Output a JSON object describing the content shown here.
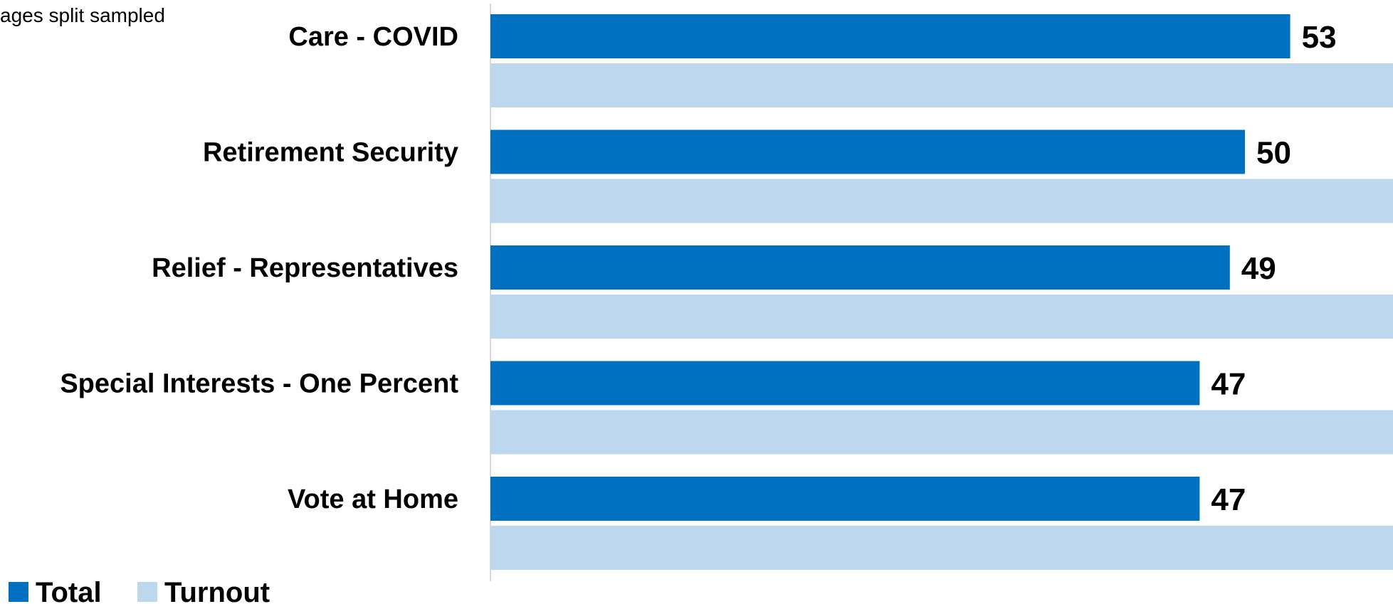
{
  "note": "ages split sampled",
  "colors": {
    "total": "#0070C0",
    "turnout": "#BDD7EE",
    "axis": "#D9D9D9"
  },
  "chart_data": {
    "type": "bar",
    "orientation": "horizontal",
    "categories": [
      "Care - COVID",
      "Retirement Security",
      "Relief - Representatives",
      "Special Interests - One Percent",
      "Vote at Home"
    ],
    "series": [
      {
        "name": "Total",
        "color": "#0070C0",
        "values": [
          53,
          50,
          49,
          47,
          47
        ]
      },
      {
        "name": "Turnout",
        "color": "#BDD7EE",
        "values": [
          61,
          63,
          61,
          60,
          64
        ]
      }
    ],
    "xlim": [
      0,
      64
    ],
    "grid": false,
    "legend_position": "bottom-left",
    "data_labels": true
  }
}
